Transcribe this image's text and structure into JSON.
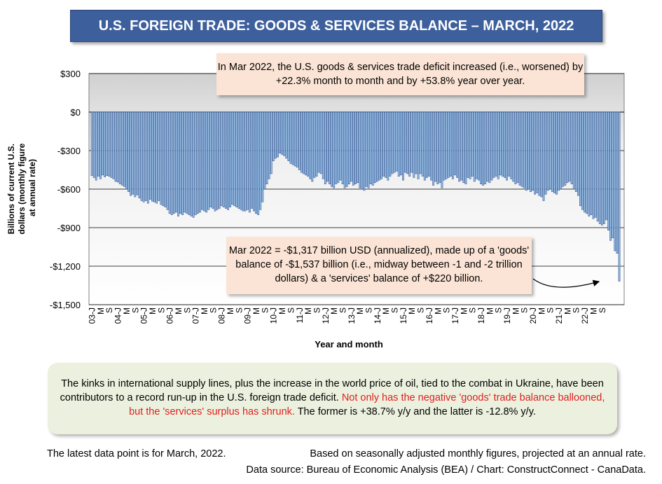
{
  "title": "U.S. FOREIGN TRADE: GOODS & SERVICES BALANCE – MARCH, 2022",
  "annotation_top": "In Mar 2022, the U.S. goods & services trade deficit increased (i.e., worsened) by +22.3% month to month and by +53.8% year over year.",
  "annotation_bottom": "Mar 2022  = -$1,317 billion USD (annualized), made up of a 'goods' balance of -$1,537 billion (i.e., midway between -1 and -2 trillion dollars) & a 'services' balance of +$220 billion.",
  "commentary": {
    "part1": "The kinks in international supply lines, plus the increase in the world price of oil, tied to the combat in Ukraine, have been contributors to a record run-up in the U.S. foreign trade deficit. ",
    "part2_red": "Not only has the negative 'goods' trade balance ballooned, but the 'services' surplus has shrunk.",
    "part3": " The former is +38.7% y/y and the latter is -12.8% y/y."
  },
  "footer": {
    "latest": "The latest data point is for March, 2022.",
    "basis": "Based on seasonally adjusted monthly figures, projected at an annual rate.",
    "source": "Data source: Bureau of Economic Analysis (BEA) / Chart: ConstructConnect - CanaData."
  },
  "colors": {
    "bar_fill": "#9dc3e6",
    "bar_stroke": "#2f5597",
    "banner": "#3d5f9c",
    "note": "#fbe4d5",
    "commentary": "#ebf1de",
    "emphasis": "#e02020"
  },
  "chart_data": {
    "type": "bar",
    "xlabel": "Year and month",
    "ylabel": "Billions of current U.S. dollars (monthly figure at annual rate)",
    "ylim": [
      -1500,
      300
    ],
    "yticks": [
      300,
      0,
      -300,
      -600,
      -900,
      -1200,
      -1500
    ],
    "ytick_labels": [
      "$300",
      "$0",
      "-$300",
      "-$600",
      "-$900",
      "-$1,200",
      "-$1,500"
    ],
    "grid": true,
    "x_start": "2003-01",
    "x_end": "2022-03",
    "x_tick_labels": [
      "03-J",
      "M",
      "S",
      "04-J",
      "M",
      "S",
      "05-J",
      "M",
      "S",
      "06-J",
      "M",
      "S",
      "07-J",
      "M",
      "S",
      "08-J",
      "M",
      "S",
      "09-J",
      "M",
      "S",
      "10-J",
      "M",
      "S",
      "11-J",
      "M",
      "S",
      "12-J",
      "M",
      "S",
      "13-J",
      "M",
      "S",
      "14-J",
      "M",
      "S",
      "15-J",
      "M",
      "S",
      "16-J",
      "M",
      "S",
      "17-J",
      "M",
      "S",
      "18-J",
      "M",
      "S",
      "19-J",
      "M",
      "S",
      "20-J",
      "M",
      "S",
      "21-J",
      "M",
      "S",
      "22-J",
      "M",
      "S"
    ],
    "series": [
      {
        "values": [
          -495,
          -510,
          -530,
          -500,
          -520,
          -490,
          -505,
          -495,
          -500,
          -510,
          -520,
          -540,
          -545,
          -560,
          -570,
          -580,
          -600,
          -620,
          -650,
          -640,
          -660,
          -645,
          -670,
          -690,
          -700,
          -690,
          -710,
          -680,
          -695,
          -700,
          -710,
          -690,
          -720,
          -730,
          -740,
          -760,
          -790,
          -800,
          -790,
          -780,
          -810,
          -790,
          -800,
          -780,
          -790,
          -800,
          -810,
          -820,
          -800,
          -790,
          -780,
          -760,
          -770,
          -780,
          -760,
          -740,
          -750,
          -770,
          -760,
          -750,
          -730,
          -740,
          -750,
          -760,
          -740,
          -720,
          -730,
          -740,
          -750,
          -760,
          -770,
          -770,
          -760,
          -780,
          -750,
          -770,
          -790,
          -800,
          -760,
          -700,
          -600,
          -560,
          -520,
          -480,
          -380,
          -360,
          -350,
          -320,
          -330,
          -340,
          -360,
          -380,
          -400,
          -410,
          -420,
          -430,
          -450,
          -470,
          -480,
          -490,
          -500,
          -520,
          -540,
          -510,
          -500,
          -470,
          -480,
          -520,
          -560,
          -540,
          -560,
          -580,
          -590,
          -560,
          -550,
          -530,
          -560,
          -590,
          -580,
          -560,
          -540,
          -570,
          -560,
          -550,
          -590,
          -600,
          -610,
          -580,
          -590,
          -560,
          -570,
          -550,
          -540,
          -530,
          -520,
          -500,
          -510,
          -530,
          -500,
          -480,
          -470,
          -460,
          -500,
          -490,
          -530,
          -470,
          -480,
          -500,
          -470,
          -510,
          -480,
          -520,
          -480,
          -500,
          -530,
          -510,
          -500,
          -530,
          -570,
          -540,
          -560,
          -550,
          -590,
          -530,
          -520,
          -510,
          -500,
          -520,
          -490,
          -510,
          -540,
          -530,
          -550,
          -560,
          -510,
          -520,
          -500,
          -540,
          -520,
          -530,
          -560,
          -570,
          -560,
          -540,
          -550,
          -530,
          -510,
          -500,
          -520,
          -490,
          -500,
          -510,
          -530,
          -500,
          -520,
          -540,
          -560,
          -550,
          -570,
          -580,
          -590,
          -610,
          -600,
          -620,
          -610,
          -640,
          -630,
          -650,
          -660,
          -690,
          -640,
          -610,
          -600,
          -620,
          -630,
          -640,
          -610,
          -600,
          -580,
          -570,
          -550,
          -540,
          -560,
          -600,
          -620,
          -650,
          -730,
          -760,
          -780,
          -790,
          -810,
          -800,
          -830,
          -820,
          -850,
          -870,
          -880,
          -870,
          -840,
          -920,
          -1000,
          -980,
          -1080,
          -1100,
          -1317
        ]
      }
    ]
  }
}
